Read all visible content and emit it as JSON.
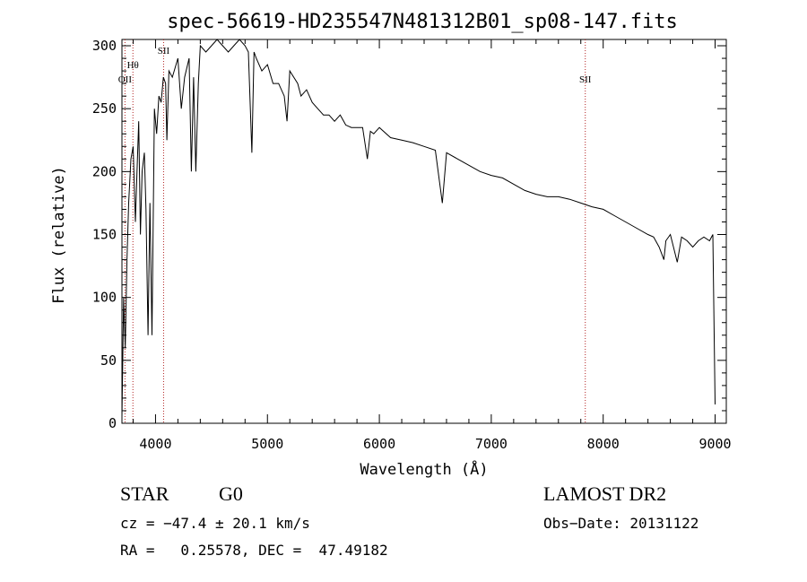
{
  "chart_data": {
    "type": "line",
    "title": "spec-56619-HD235547N481312B01_sp08-147.fits",
    "xlabel": "Wavelength (Å)",
    "ylabel": "Flux (relative)",
    "xlim": [
      3700,
      9100
    ],
    "ylim": [
      0,
      305
    ],
    "xticks": [
      4000,
      5000,
      6000,
      7000,
      8000,
      9000
    ],
    "yticks": [
      0,
      50,
      100,
      150,
      200,
      250,
      300
    ],
    "grid": false,
    "line_color": "#000000",
    "line_markers": [
      {
        "label": "OII",
        "x": 3727
      },
      {
        "label": "Hθ",
        "x": 3798
      },
      {
        "label": "SII",
        "x": 4072
      },
      {
        "label": "SII",
        "x": 7840
      }
    ],
    "marker_color": "#b22222",
    "series": [
      {
        "x": [
          3700,
          3715,
          3730,
          3745,
          3760,
          3780,
          3800,
          3820,
          3835,
          3850,
          3865,
          3880,
          3900,
          3915,
          3933,
          3950,
          3968,
          3990,
          4010,
          4030,
          4050,
          4070,
          4090,
          4101,
          4120,
          4150,
          4200,
          4230,
          4260,
          4300,
          4320,
          4340,
          4360,
          4383,
          4400,
          4450,
          4500,
          4550,
          4600,
          4650,
          4700,
          4750,
          4800,
          4830,
          4861,
          4880,
          4900,
          4950,
          5000,
          5050,
          5100,
          5150,
          5175,
          5200,
          5270,
          5300,
          5350,
          5400,
          5450,
          5500,
          5550,
          5600,
          5650,
          5700,
          5750,
          5800,
          5850,
          5893,
          5920,
          5950,
          6000,
          6100,
          6200,
          6300,
          6400,
          6500,
          6563,
          6600,
          6700,
          6800,
          6900,
          7000,
          7100,
          7200,
          7300,
          7400,
          7500,
          7600,
          7700,
          7800,
          7900,
          8000,
          8100,
          8200,
          8300,
          8400,
          8450,
          8500,
          8542,
          8560,
          8600,
          8662,
          8700,
          8750,
          8800,
          8850,
          8900,
          8950,
          8980,
          9000
        ],
        "y": [
          5,
          100,
          60,
          130,
          175,
          210,
          220,
          160,
          200,
          240,
          150,
          200,
          215,
          170,
          70,
          175,
          70,
          250,
          230,
          260,
          255,
          275,
          270,
          225,
          280,
          275,
          290,
          250,
          275,
          290,
          200,
          275,
          200,
          270,
          300,
          295,
          300,
          305,
          300,
          295,
          300,
          305,
          300,
          295,
          215,
          295,
          290,
          280,
          285,
          270,
          270,
          260,
          240,
          280,
          270,
          260,
          265,
          255,
          250,
          245,
          245,
          240,
          245,
          237,
          235,
          235,
          235,
          210,
          232,
          230,
          235,
          227,
          225,
          223,
          220,
          217,
          175,
          215,
          210,
          205,
          200,
          197,
          195,
          190,
          185,
          182,
          180,
          180,
          178,
          175,
          172,
          170,
          165,
          160,
          155,
          150,
          148,
          140,
          130,
          145,
          150,
          128,
          148,
          145,
          140,
          145,
          148,
          145,
          150,
          15
        ]
      }
    ]
  },
  "info": {
    "object_class": "STAR",
    "subclass": "G0",
    "survey": "LAMOST DR2",
    "cz_line": "cz = −47.4 ± 20.1 km/s",
    "obs_date_line": "Obs−Date: 20131122",
    "coords_line": "RA =   0.25578, DEC =  47.49182"
  }
}
